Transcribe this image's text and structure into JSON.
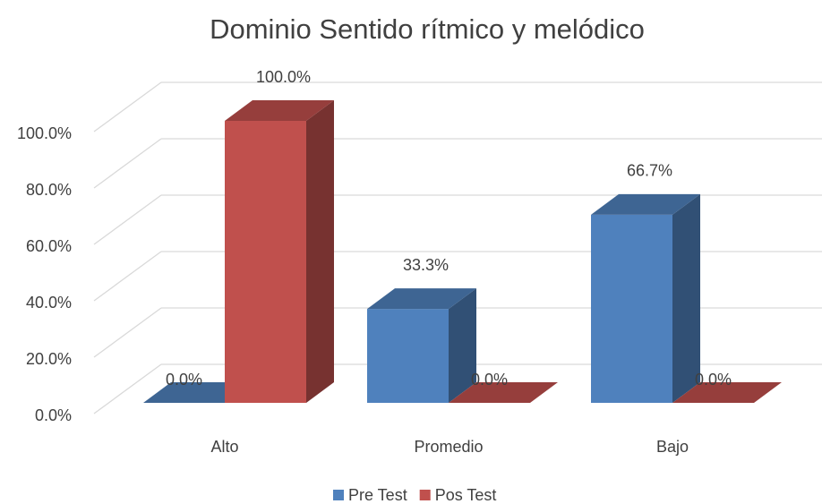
{
  "chart_data": {
    "type": "bar3d",
    "title": "Dominio Sentido rítmico y melódico",
    "categories": [
      "Alto",
      "Promedio",
      "Bajo"
    ],
    "series": [
      {
        "name": "Pre Test",
        "color": "#4f81bd",
        "values": [
          0,
          33.3,
          66.7
        ],
        "value_labels": [
          "0.0%",
          "33.3%",
          "66.7%"
        ]
      },
      {
        "name": "Pos Test",
        "color": "#c0504d",
        "values": [
          100,
          0,
          0
        ],
        "value_labels": [
          "100.0%",
          "0.0%",
          "0.0%"
        ]
      }
    ],
    "ylim": [
      0,
      100
    ],
    "yticks": [
      {
        "value": 0,
        "label": "0.0%"
      },
      {
        "value": 20,
        "label": "20.0%"
      },
      {
        "value": 40,
        "label": "40.0%"
      },
      {
        "value": 60,
        "label": "60.0%"
      },
      {
        "value": 80,
        "label": "80.0%"
      },
      {
        "value": 100,
        "label": "100.0%"
      }
    ],
    "grid": true,
    "legend": "bottom"
  }
}
